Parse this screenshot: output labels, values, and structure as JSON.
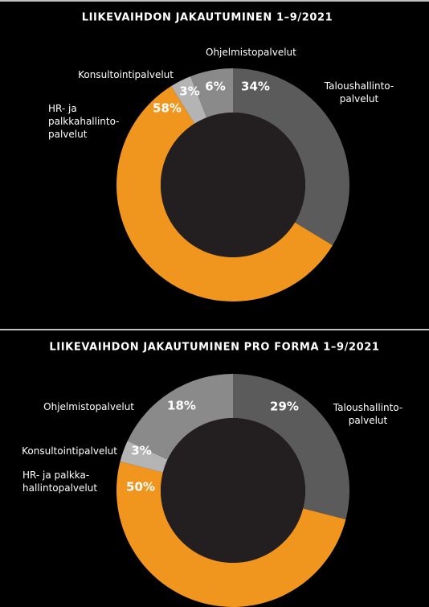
{
  "chart_data": [
    {
      "type": "pie",
      "title": "LIIKEVAIHDON JAKAUTUMINEN 1–9/2021",
      "categories": [
        "Taloushallinto-\npalvelut",
        "HR- ja\npalkkahallinto-\npalvelut",
        "Konsultointipalvelut",
        "Ohjelmistopalvelut"
      ],
      "values": [
        34,
        58,
        3,
        6
      ],
      "value_labels": [
        "34%",
        "58%",
        "3%",
        "6%"
      ],
      "colors": [
        "#5b5b5b",
        "#f0961e",
        "#b4b4b4",
        "#8a8a8a"
      ]
    },
    {
      "type": "pie",
      "title": "LIIKEVAIHDON JAKAUTUMINEN PRO FORMA 1–9/2021",
      "categories": [
        "Taloushallinto-\npalvelut",
        "HR- ja palkka-\nhallintopalvelut",
        "Konsultointipalvelut",
        "Ohjelmistopalvelut"
      ],
      "values": [
        29,
        50,
        3,
        18
      ],
      "value_labels": [
        "29%",
        "50%",
        "3%",
        "18%"
      ],
      "colors": [
        "#5b5b5b",
        "#f0961e",
        "#b4b4b4",
        "#8a8a8a"
      ]
    }
  ]
}
